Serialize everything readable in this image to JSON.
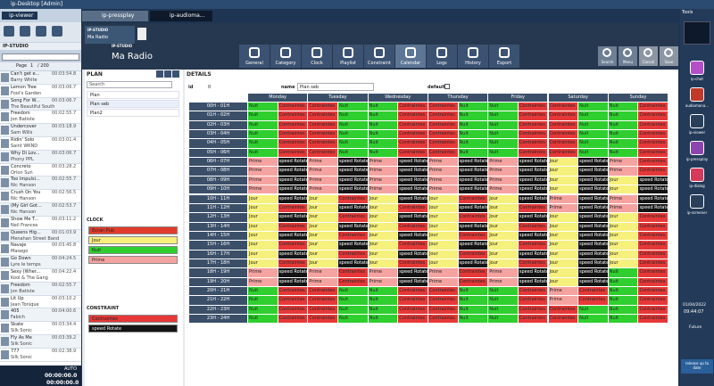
{
  "window": {
    "title": "ip-Desktop [Admin]"
  },
  "left_panel": {
    "tab": "ip-viewer",
    "logo": "IP-STUDIO",
    "pager": {
      "label": "Page",
      "current": "1",
      "total": "/ 200"
    },
    "songs": [
      {
        "title": "Can't get e...",
        "duration": "00:03:54.8",
        "artist": "Barry White"
      },
      {
        "title": "Lemon Tree",
        "duration": "00:03:06.7",
        "artist": "Fool's Garden"
      },
      {
        "title": "Song For W...",
        "duration": "00:03:06.7",
        "artist": "The Beautiful South"
      },
      {
        "title": "Freedom",
        "duration": "00:02:55.7",
        "artist": "Jon Batiste"
      },
      {
        "title": "Undercover",
        "duration": "00:03:18.9",
        "artist": "Sam Wills"
      },
      {
        "title": "Ridin' Solo",
        "duration": "00:03:01.4",
        "artist": "Saint WKND"
      },
      {
        "title": "Why Di Lov...",
        "duration": "00:03:06.7",
        "artist": "Phony PPL"
      },
      {
        "title": "Concreto",
        "duration": "00:03:28.2",
        "artist": "Orion Sun"
      },
      {
        "title": "Too Impulsi...",
        "duration": "00:02:55.7",
        "artist": "Nic Hanson"
      },
      {
        "title": "Crush On You",
        "duration": "00:02:56.5",
        "artist": "Nic Hanson"
      },
      {
        "title": "(My Girl Got...",
        "duration": "00:02:53.7",
        "artist": "Nic Hanson"
      },
      {
        "title": "Show Me T...",
        "duration": "00:03:11.2",
        "artist": "Neil Frances"
      },
      {
        "title": "Queens Hig...",
        "duration": "00:01:03.9",
        "artist": "Menahan Street Band"
      },
      {
        "title": "Navaje",
        "duration": "00:03:45.8",
        "artist": "Masego"
      },
      {
        "title": "Go Down",
        "duration": "00:04:24.5",
        "artist": "Lyre le temps"
      },
      {
        "title": "Sexy (Wher...",
        "duration": "00:04:22.4",
        "artist": "Kool & The Gang"
      },
      {
        "title": "Freedom",
        "duration": "00:02:55.7",
        "artist": "Jon Batiste"
      },
      {
        "title": "Lit Up",
        "duration": "00:03:10.2",
        "artist": "Jean Tonique"
      },
      {
        "title": "405",
        "duration": "00:04:00.6",
        "artist": "Fabich"
      },
      {
        "title": "Skate",
        "duration": "00:03:34.4",
        "artist": "Silk Sonic"
      },
      {
        "title": "Fly As Me",
        "duration": "00:03:39.2",
        "artist": "Silk Sonic"
      },
      {
        "title": "777",
        "duration": "00:02:38.9",
        "artist": "Silk Sonic"
      }
    ],
    "timers": [
      "00:00:00.0",
      "00:00:00.0"
    ],
    "mode": "AUTO"
  },
  "tabs": [
    "ip-pressplay",
    "ip-audioma..."
  ],
  "app": {
    "logo": "IP-STUDIO",
    "tab_name": "Ma Radio",
    "title": "Ma Radio"
  },
  "toolbar": [
    "General",
    "Category",
    "Clock",
    "Playlist",
    "Constraint",
    "Calendar",
    "Logs",
    "History",
    "Export"
  ],
  "toolbar_right": [
    "Search",
    "Menu",
    "Cancel",
    "Save"
  ],
  "plan": {
    "title": "PLAN",
    "search": "Search",
    "items": [
      "Plan",
      "Plan seb",
      "Plan2"
    ]
  },
  "clock": {
    "title": "CLOCK",
    "items": [
      {
        "name": "Ecran Pub",
        "color": "#e23b2b"
      },
      {
        "name": "Jour",
        "color": "#f6f07c"
      },
      {
        "name": "Nuit",
        "color": "#2fcf2f"
      },
      {
        "name": "Prime",
        "color": "#f5a3a0"
      }
    ]
  },
  "constraint": {
    "title": "CONSTRAINT",
    "items": [
      {
        "name": "Contraintes",
        "color": "#e63838"
      },
      {
        "name": "speed Rotate",
        "color": "#141414"
      }
    ]
  },
  "details": {
    "title": "DETAILS",
    "id_label": "id",
    "id": 0,
    "name_label": "name",
    "name": "Plan seb",
    "default_label": "default"
  },
  "grid": {
    "days": [
      "Monday",
      "Tuesday",
      "Wednesday",
      "Thursday",
      "Friday",
      "Saturday",
      "Sunday"
    ],
    "rows": [
      {
        "hour": "00H - 01H",
        "cells": [
          [
            "Nuit",
            "Contraintes"
          ],
          [
            "Contraintes",
            "Nuit"
          ],
          [
            "Nuit",
            "Contraintes"
          ],
          [
            "Contraintes",
            "Nuit"
          ],
          [
            "Nuit",
            "Contraintes"
          ],
          [
            "Contraintes",
            "Nuit"
          ],
          [
            "Nuit",
            "Contraintes"
          ]
        ]
      },
      {
        "hour": "01H - 02H",
        "cells": [
          [
            "Nuit",
            "Contraintes"
          ],
          [
            "Contraintes",
            "Nuit"
          ],
          [
            "Nuit",
            "Contraintes"
          ],
          [
            "Contraintes",
            "Nuit"
          ],
          [
            "Nuit",
            "Contraintes"
          ],
          [
            "Contraintes",
            "Nuit"
          ],
          [
            "Nuit",
            "Contraintes"
          ]
        ]
      },
      {
        "hour": "02H - 03H",
        "cells": [
          [
            "Nuit",
            "Contraintes"
          ],
          [
            "Contraintes",
            "Nuit"
          ],
          [
            "Nuit",
            "Contraintes"
          ],
          [
            "Contraintes",
            "Nuit"
          ],
          [
            "Nuit",
            "Contraintes"
          ],
          [
            "Contraintes",
            "Nuit"
          ],
          [
            "Nuit",
            "Contraintes"
          ]
        ]
      },
      {
        "hour": "03H - 04H",
        "cells": [
          [
            "Nuit",
            "Contraintes"
          ],
          [
            "Contraintes",
            "Nuit"
          ],
          [
            "Nuit",
            "Contraintes"
          ],
          [
            "Contraintes",
            "Nuit"
          ],
          [
            "Nuit",
            "Contraintes"
          ],
          [
            "Contraintes",
            "Nuit"
          ],
          [
            "Nuit",
            "Contraintes"
          ]
        ]
      },
      {
        "hour": "04H - 05H",
        "cells": [
          [
            "Nuit",
            "Contraintes"
          ],
          [
            "Contraintes",
            "Nuit"
          ],
          [
            "Nuit",
            "Contraintes"
          ],
          [
            "Contraintes",
            "Nuit"
          ],
          [
            "Nuit",
            "Contraintes"
          ],
          [
            "Contraintes",
            "Nuit"
          ],
          [
            "Nuit",
            "Contraintes"
          ]
        ]
      },
      {
        "hour": "05H - 06H",
        "cells": [
          [
            "Nuit",
            "Contraintes"
          ],
          [
            "Contraintes",
            "Nuit"
          ],
          [
            "Nuit",
            "Contraintes"
          ],
          [
            "Contraintes",
            "Nuit"
          ],
          [
            "Nuit",
            "Contraintes"
          ],
          [
            "Contraintes",
            "Nuit"
          ],
          [
            "Nuit",
            "Contraintes"
          ]
        ]
      },
      {
        "hour": "06H - 07H",
        "cells": [
          [
            "Prime",
            "speed Rotate"
          ],
          [
            "Prime",
            "speed Rotate"
          ],
          [
            "Prime",
            "speed Rotate"
          ],
          [
            "Prime",
            "speed Rotate"
          ],
          [
            "Prime",
            "speed Rotate"
          ],
          [
            "Jour",
            "speed Rotate"
          ],
          [
            "Prime",
            "Contraintes"
          ]
        ]
      },
      {
        "hour": "07H - 08H",
        "cells": [
          [
            "Prime",
            "speed Rotate"
          ],
          [
            "Prime",
            "speed Rotate"
          ],
          [
            "Prime",
            "speed Rotate"
          ],
          [
            "Prime",
            "speed Rotate"
          ],
          [
            "Prime",
            "speed Rotate"
          ],
          [
            "Jour",
            "speed Rotate"
          ],
          [
            "Prime",
            "Contraintes"
          ]
        ]
      },
      {
        "hour": "08H - 09H",
        "cells": [
          [
            "Prime",
            "speed Rotate"
          ],
          [
            "Prime",
            "speed Rotate"
          ],
          [
            "Prime",
            "speed Rotate"
          ],
          [
            "Prime",
            "speed Rotate"
          ],
          [
            "Prime",
            "speed Rotate"
          ],
          [
            "Jour",
            "speed Rotate"
          ],
          [
            "Jour",
            "speed Rotate"
          ]
        ]
      },
      {
        "hour": "09H - 10H",
        "cells": [
          [
            "Prime",
            "speed Rotate"
          ],
          [
            "Prime",
            "speed Rotate"
          ],
          [
            "Prime",
            "speed Rotate"
          ],
          [
            "Prime",
            "speed Rotate"
          ],
          [
            "Prime",
            "speed Rotate"
          ],
          [
            "Jour",
            "speed Rotate"
          ],
          [
            "Jour",
            "speed Rotate"
          ]
        ]
      },
      {
        "hour": "10H - 11H",
        "cells": [
          [
            "Jour",
            "speed Rotate"
          ],
          [
            "Jour",
            "Contraintes"
          ],
          [
            "Jour",
            "speed Rotate"
          ],
          [
            "Jour",
            "Contraintes"
          ],
          [
            "Jour",
            "speed Rotate"
          ],
          [
            "Prime",
            "speed Rotate"
          ],
          [
            "Prime",
            "speed Rotate"
          ]
        ]
      },
      {
        "hour": "11H - 12H",
        "cells": [
          [
            "Jour",
            "Contraintes"
          ],
          [
            "Jour",
            "speed Rotate"
          ],
          [
            "Jour",
            "Contraintes"
          ],
          [
            "Jour",
            "speed Rotate"
          ],
          [
            "Jour",
            "Contraintes"
          ],
          [
            "Prime",
            "speed Rotate"
          ],
          [
            "Prime",
            "speed Rotate"
          ]
        ]
      },
      {
        "hour": "12H - 13H",
        "cells": [
          [
            "Jour",
            "speed Rotate"
          ],
          [
            "Jour",
            "Contraintes"
          ],
          [
            "Jour",
            "speed Rotate"
          ],
          [
            "Jour",
            "Contraintes"
          ],
          [
            "Jour",
            "speed Rotate"
          ],
          [
            "Jour",
            "speed Rotate"
          ],
          [
            "Jour",
            "Contraintes"
          ]
        ]
      },
      {
        "hour": "13H - 14H",
        "cells": [
          [
            "Jour",
            "Contraintes"
          ],
          [
            "Jour",
            "speed Rotate"
          ],
          [
            "Jour",
            "Contraintes"
          ],
          [
            "Jour",
            "speed Rotate"
          ],
          [
            "Jour",
            "Contraintes"
          ],
          [
            "Jour",
            "speed Rotate"
          ],
          [
            "Jour",
            "Contraintes"
          ]
        ]
      },
      {
        "hour": "14H - 15H",
        "cells": [
          [
            "Jour",
            "speed Rotate"
          ],
          [
            "Jour",
            "Contraintes"
          ],
          [
            "Jour",
            "speed Rotate"
          ],
          [
            "Jour",
            "Contraintes"
          ],
          [
            "Jour",
            "speed Rotate"
          ],
          [
            "Jour",
            "speed Rotate"
          ],
          [
            "Jour",
            "Contraintes"
          ]
        ]
      },
      {
        "hour": "15H - 16H",
        "cells": [
          [
            "Jour",
            "Contraintes"
          ],
          [
            "Jour",
            "speed Rotate"
          ],
          [
            "Jour",
            "Contraintes"
          ],
          [
            "Jour",
            "speed Rotate"
          ],
          [
            "Jour",
            "Contraintes"
          ],
          [
            "Jour",
            "speed Rotate"
          ],
          [
            "Jour",
            "Contraintes"
          ]
        ]
      },
      {
        "hour": "16H - 17H",
        "cells": [
          [
            "Jour",
            "speed Rotate"
          ],
          [
            "Jour",
            "Contraintes"
          ],
          [
            "Jour",
            "speed Rotate"
          ],
          [
            "Jour",
            "Contraintes"
          ],
          [
            "Jour",
            "speed Rotate"
          ],
          [
            "Jour",
            "speed Rotate"
          ],
          [
            "Jour",
            "Contraintes"
          ]
        ]
      },
      {
        "hour": "17H - 18H",
        "cells": [
          [
            "Jour",
            "Contraintes"
          ],
          [
            "Jour",
            "speed Rotate"
          ],
          [
            "Jour",
            "Contraintes"
          ],
          [
            "Jour",
            "speed Rotate"
          ],
          [
            "Jour",
            "Contraintes"
          ],
          [
            "Jour",
            "speed Rotate"
          ],
          [
            "Jour",
            "Contraintes"
          ]
        ]
      },
      {
        "hour": "18H - 19H",
        "cells": [
          [
            "Prime",
            "speed Rotate"
          ],
          [
            "Prime",
            "Contraintes"
          ],
          [
            "Prime",
            "speed Rotate"
          ],
          [
            "Prime",
            "Contraintes"
          ],
          [
            "Prime",
            "speed Rotate"
          ],
          [
            "Jour",
            "speed Rotate"
          ],
          [
            "Nuit",
            "Contraintes"
          ]
        ]
      },
      {
        "hour": "19H - 20H",
        "cells": [
          [
            "Prime",
            "speed Rotate"
          ],
          [
            "Prime",
            "Contraintes"
          ],
          [
            "Prime",
            "speed Rotate"
          ],
          [
            "Prime",
            "Contraintes"
          ],
          [
            "Prime",
            "speed Rotate"
          ],
          [
            "Jour",
            "speed Rotate"
          ],
          [
            "Nuit",
            "Contraintes"
          ]
        ]
      },
      {
        "hour": "20H - 21H",
        "cells": [
          [
            "Nuit",
            "Contraintes"
          ],
          [
            "Contraintes",
            "Nuit"
          ],
          [
            "Nuit",
            "Contraintes"
          ],
          [
            "Contraintes",
            "Nuit"
          ],
          [
            "Nuit",
            "Contraintes"
          ],
          [
            "Prime",
            "Contraintes"
          ],
          [
            "Nuit",
            "Contraintes"
          ]
        ]
      },
      {
        "hour": "21H - 22H",
        "cells": [
          [
            "Nuit",
            "Contraintes"
          ],
          [
            "Contraintes",
            "Nuit"
          ],
          [
            "Nuit",
            "Contraintes"
          ],
          [
            "Contraintes",
            "Nuit"
          ],
          [
            "Nuit",
            "Contraintes"
          ],
          [
            "Prime",
            "Contraintes"
          ],
          [
            "Nuit",
            "Contraintes"
          ]
        ]
      },
      {
        "hour": "22H - 23H",
        "cells": [
          [
            "Nuit",
            "Contraintes"
          ],
          [
            "Contraintes",
            "Nuit"
          ],
          [
            "Nuit",
            "Contraintes"
          ],
          [
            "Contraintes",
            "Nuit"
          ],
          [
            "Nuit",
            "Contraintes"
          ],
          [
            "Contraintes",
            "Nuit"
          ],
          [
            "Nuit",
            "Contraintes"
          ]
        ]
      },
      {
        "hour": "23H - 24H",
        "cells": [
          [
            "Nuit",
            "Contraintes"
          ],
          [
            "Contraintes",
            "Nuit"
          ],
          [
            "Nuit",
            "Contraintes"
          ],
          [
            "Contraintes",
            "Nuit"
          ],
          [
            "Nuit",
            "Contraintes"
          ],
          [
            "Contraintes",
            "Nuit"
          ],
          [
            "Nuit",
            "Contraintes"
          ]
        ]
      }
    ]
  },
  "sidebar": {
    "title": "Tools",
    "items": [
      {
        "label": "ip-chat",
        "color": "#b44fc8"
      },
      {
        "label": "audiomana...",
        "color": "#c0392b"
      },
      {
        "label": "ip-viewer",
        "color": "#2a3f5a"
      },
      {
        "label": "ip-pressplay",
        "color": "#8e44ad"
      },
      {
        "label": "ip-dialog",
        "color": "#d63a5a"
      },
      {
        "label": "ip-screener",
        "color": "#2a3f5a"
      }
    ],
    "date": "01/04/2022",
    "time": "09:44:07",
    "future": "Future",
    "status": "release up to date"
  }
}
